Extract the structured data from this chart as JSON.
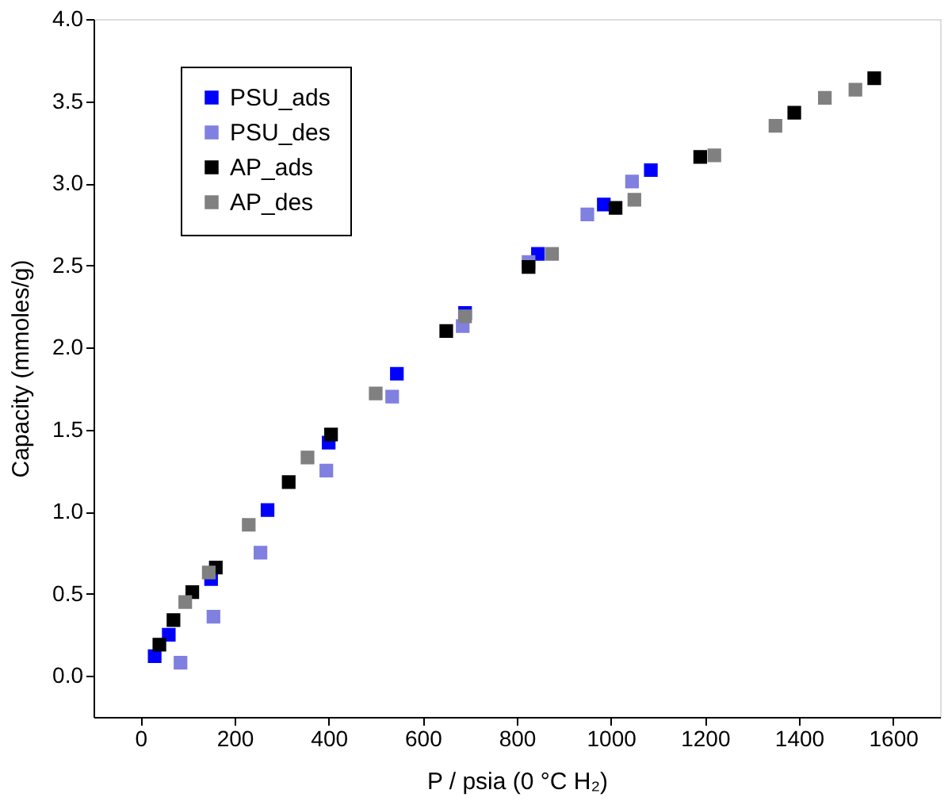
{
  "chart_data": {
    "type": "scatter",
    "xlabel": "P / psia (0 °C H₂)",
    "ylabel": "Capacity (mmoles/g)",
    "xlim": [
      -100,
      1700
    ],
    "xticks": [
      0,
      200,
      400,
      600,
      800,
      1000,
      1200,
      1400,
      1600
    ],
    "ylim": [
      -0.25,
      4.0
    ],
    "yticks": [
      {
        "value": 0,
        "label": "0.0"
      },
      {
        "value": 0.5,
        "label": "0.5"
      },
      {
        "value": 1,
        "label": "1.0"
      },
      {
        "value": 1.5,
        "label": "1.5"
      },
      {
        "value": 2,
        "label": "2.0"
      },
      {
        "value": 2.5,
        "label": "2.5"
      },
      {
        "value": 3,
        "label": "3.0"
      },
      {
        "value": 3.5,
        "label": "3.5"
      },
      {
        "value": 4,
        "label": "4.0"
      }
    ],
    "grid": false,
    "legend": "top left",
    "marker": "square",
    "series": [
      {
        "name": "PSU_ads",
        "color": "#0000ff",
        "x": [
          30,
          60,
          150,
          270,
          400,
          545,
          690,
          845,
          985,
          1085
        ],
        "values": [
          0.12,
          0.25,
          0.59,
          1.01,
          1.42,
          1.84,
          2.21,
          2.57,
          2.87,
          3.08
        ]
      },
      {
        "name": "PSU_des",
        "color": "#8080e0",
        "x": [
          85,
          155,
          255,
          395,
          535,
          685,
          825,
          950,
          1045
        ],
        "values": [
          0.08,
          0.36,
          0.75,
          1.25,
          1.7,
          2.13,
          2.52,
          2.81,
          3.01
        ]
      },
      {
        "name": "AP_ads",
        "color": "#000000",
        "x": [
          40,
          70,
          110,
          160,
          315,
          405,
          650,
          825,
          1010,
          1190,
          1390,
          1560
        ],
        "values": [
          0.19,
          0.34,
          0.51,
          0.66,
          1.18,
          1.47,
          2.1,
          2.49,
          2.85,
          3.16,
          3.43,
          3.64
        ]
      },
      {
        "name": "AP_des",
        "color": "#808080",
        "x": [
          95,
          145,
          230,
          355,
          500,
          690,
          875,
          1050,
          1220,
          1350,
          1455,
          1520
        ],
        "values": [
          0.45,
          0.63,
          0.92,
          1.33,
          1.72,
          2.19,
          2.57,
          2.9,
          3.17,
          3.35,
          3.52,
          3.57
        ]
      }
    ]
  }
}
